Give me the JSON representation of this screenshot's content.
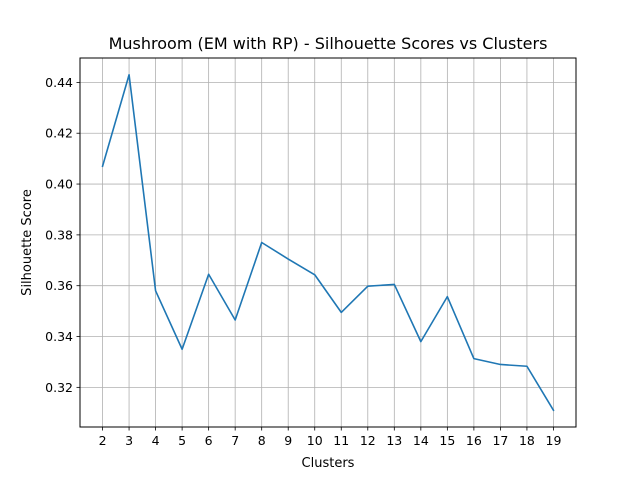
{
  "chart_data": {
    "type": "line",
    "title": "Mushroom (EM with RP) - Silhouette Scores vs Clusters",
    "xlabel": "Clusters",
    "ylabel": "Silhouette Score",
    "x": [
      2,
      3,
      4,
      5,
      6,
      7,
      8,
      9,
      10,
      11,
      12,
      13,
      14,
      15,
      16,
      17,
      18,
      19
    ],
    "series": [
      {
        "values": [
          0.407,
          0.443,
          0.358,
          0.335,
          0.3645,
          0.3465,
          0.377,
          0.3705,
          0.3643,
          0.3495,
          0.3598,
          0.3605,
          0.338,
          0.3557,
          0.3313,
          0.329,
          0.3283,
          0.311
        ],
        "color": "#1f77b4"
      }
    ],
    "xlim": [
      1.15,
      19.85
    ],
    "ylim": [
      0.3044,
      0.4496
    ],
    "xticks": [
      2,
      3,
      4,
      5,
      6,
      7,
      8,
      9,
      10,
      11,
      12,
      13,
      14,
      15,
      16,
      17,
      18,
      19
    ],
    "yticks": [
      0.32,
      0.34,
      0.36,
      0.38,
      0.4,
      0.42,
      0.44
    ],
    "ytick_labels": [
      "0.32",
      "0.34",
      "0.36",
      "0.38",
      "0.40",
      "0.42",
      "0.44"
    ],
    "grid": true
  }
}
